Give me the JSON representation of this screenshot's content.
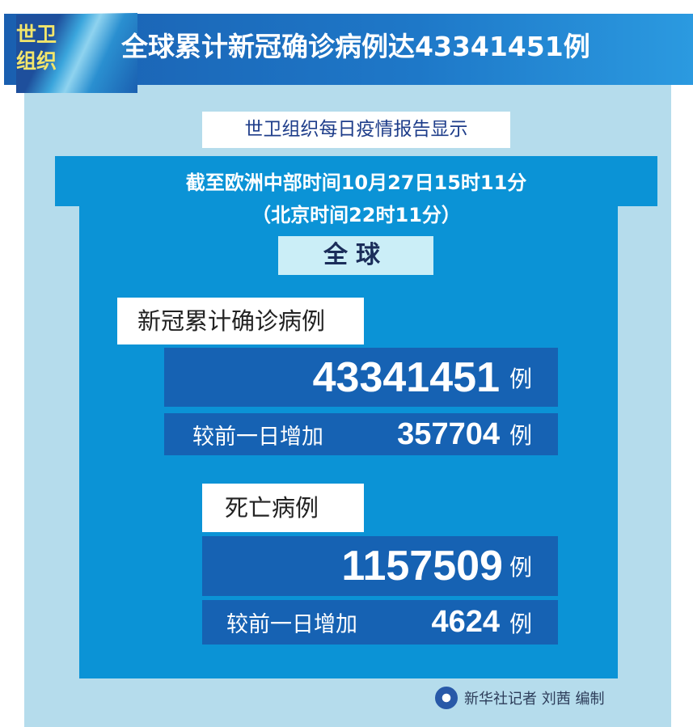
{
  "header": {
    "org_badge": "世卫\n组织",
    "org_line1": "世卫",
    "org_line2": "组织",
    "title": "全球累计新冠确诊病例达43341451例"
  },
  "subtitle": "世卫组织每日疫情报告显示",
  "time": {
    "cet": "截至欧洲中部时间10月27日15时11分",
    "beijing": "（北京时间22时11分）"
  },
  "scope": "全球",
  "cases": {
    "label": "新冠累计确诊病例",
    "total": "43341451",
    "unit": "例",
    "increase_label": "较前一日增加",
    "increase": "357704"
  },
  "deaths": {
    "label": "死亡病例",
    "total": "1157509",
    "unit": "例",
    "increase_label": "较前一日增加",
    "increase": "4624"
  },
  "footer": {
    "credit": "新华社记者 刘茜 编制",
    "logo": "xinhua-emblem"
  },
  "colors": {
    "panel": "#b5dcec",
    "mid_blue": "#0b93d6",
    "dark_blue": "#1662b3",
    "badge_text": "#f2e56b"
  }
}
